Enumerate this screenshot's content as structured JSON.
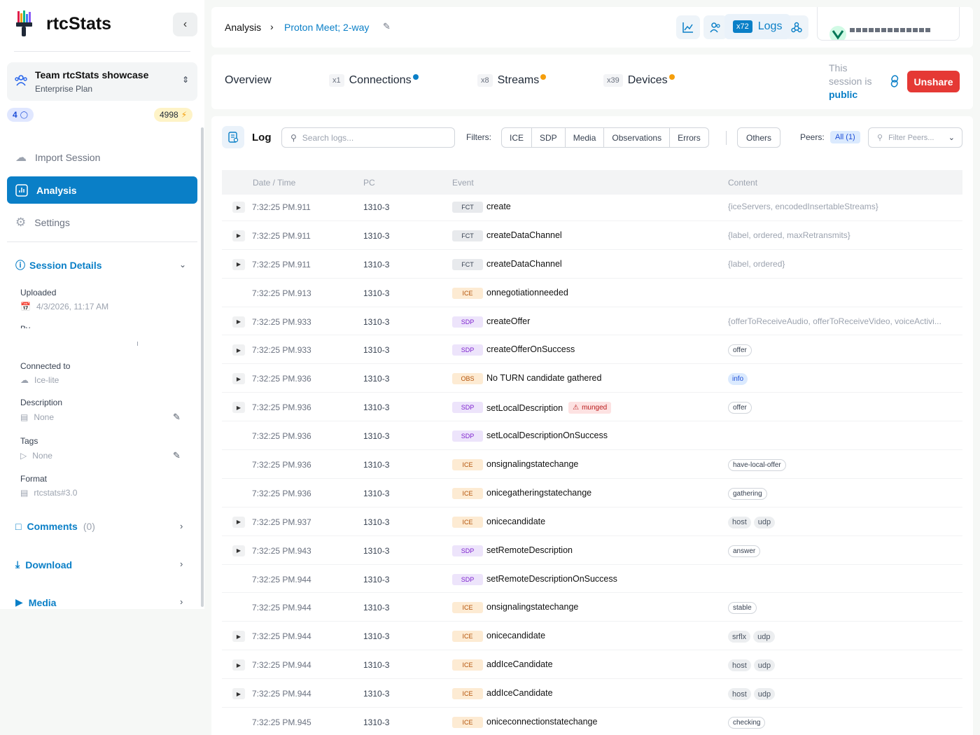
{
  "brand": {
    "name": "rtcStats"
  },
  "team": {
    "name": "Team rtcStats showcase",
    "plan": "Enterprise Plan",
    "users": "4",
    "credits": "4998"
  },
  "nav": {
    "import": "Import Session",
    "analysis": "Analysis",
    "settings": "Settings"
  },
  "session_details": {
    "title": "Session Details",
    "uploaded_label": "Uploaded",
    "uploaded_value": "4/3/2026, 11:17 AM",
    "by_label": "By",
    "connected_label": "Connected to",
    "connected_value": "Ice-lite",
    "description_label": "Description",
    "description_value": "None",
    "tags_label": "Tags",
    "tags_value": "None",
    "format_label": "Format",
    "format_value": "rtcstats#3.0"
  },
  "links": {
    "comments": "Comments",
    "comments_count": "(0)",
    "download": "Download",
    "media": "Media"
  },
  "breadcrumb": {
    "root": "Analysis",
    "current": "Proton Meet; 2-way"
  },
  "tabs": {
    "overview": "Overview",
    "connections": {
      "count": "x1",
      "label": "Connections"
    },
    "streams": {
      "count": "x8",
      "label": "Streams"
    },
    "devices": {
      "count": "x39",
      "label": "Devices"
    },
    "logs": {
      "count": "x72",
      "label": "Logs"
    }
  },
  "share": {
    "prefix": "This",
    "middle": "session is",
    "status": "public",
    "button": "Unshare"
  },
  "log": {
    "title": "Log",
    "search_placeholder": "Search logs...",
    "filters_label": "Filters:",
    "filters": [
      "ICE",
      "SDP",
      "Media",
      "Observations",
      "Errors"
    ],
    "others": "Others",
    "peers_label": "Peers:",
    "peers_all": "All (1)",
    "peers_placeholder": "Filter Peers..."
  },
  "columns": {
    "datetime": "Date / Time",
    "pc": "PC",
    "event": "Event",
    "content": "Content"
  },
  "colors": {
    "accent": "#0a7fc7",
    "danger": "#e53935",
    "dot_connections": "#0a7fc7",
    "dot_warning": "#f59e0b"
  },
  "rows": [
    {
      "exp": true,
      "time": "7:32:25 PM.911",
      "pc": "1310-3",
      "type": "FCT",
      "event": "create",
      "text": "{iceServers, encodedInsertableStreams}"
    },
    {
      "exp": true,
      "time": "7:32:25 PM.911",
      "pc": "1310-3",
      "type": "FCT",
      "event": "createDataChannel",
      "text": "{label, ordered, maxRetransmits}"
    },
    {
      "exp": true,
      "time": "7:32:25 PM.911",
      "pc": "1310-3",
      "type": "FCT",
      "event": "createDataChannel",
      "text": "{label, ordered}"
    },
    {
      "exp": false,
      "time": "7:32:25 PM.913",
      "pc": "1310-3",
      "type": "ICE",
      "event": "onnegotiationneeded"
    },
    {
      "exp": true,
      "time": "7:32:25 PM.933",
      "pc": "1310-3",
      "type": "SDP",
      "event": "createOffer",
      "text": "{offerToReceiveAudio, offerToReceiveVideo, voiceActivi..."
    },
    {
      "exp": true,
      "time": "7:32:25 PM.933",
      "pc": "1310-3",
      "type": "SDP",
      "event": "createOfferOnSuccess",
      "chips": [
        "offer"
      ]
    },
    {
      "exp": true,
      "time": "7:32:25 PM.936",
      "pc": "1310-3",
      "type": "OBS",
      "event": "No TURN candidate gathered",
      "info": "info"
    },
    {
      "exp": true,
      "time": "7:32:25 PM.936",
      "pc": "1310-3",
      "type": "SDP",
      "event": "setLocalDescription",
      "flag": "munged",
      "chips": [
        "offer"
      ]
    },
    {
      "exp": false,
      "time": "7:32:25 PM.936",
      "pc": "1310-3",
      "type": "SDP",
      "event": "setLocalDescriptionOnSuccess"
    },
    {
      "exp": false,
      "time": "7:32:25 PM.936",
      "pc": "1310-3",
      "type": "ICE",
      "event": "onsignalingstatechange",
      "chips": [
        "have-local-offer"
      ]
    },
    {
      "exp": false,
      "time": "7:32:25 PM.936",
      "pc": "1310-3",
      "type": "ICE",
      "event": "onicegatheringstatechange",
      "chips": [
        "gathering"
      ]
    },
    {
      "exp": true,
      "time": "7:32:25 PM.937",
      "pc": "1310-3",
      "type": "ICE",
      "event": "onicecandidate",
      "grey": [
        "host",
        "udp"
      ]
    },
    {
      "exp": true,
      "time": "7:32:25 PM.943",
      "pc": "1310-3",
      "type": "SDP",
      "event": "setRemoteDescription",
      "chips": [
        "answer"
      ]
    },
    {
      "exp": false,
      "time": "7:32:25 PM.944",
      "pc": "1310-3",
      "type": "SDP",
      "event": "setRemoteDescriptionOnSuccess"
    },
    {
      "exp": false,
      "time": "7:32:25 PM.944",
      "pc": "1310-3",
      "type": "ICE",
      "event": "onsignalingstatechange",
      "chips": [
        "stable"
      ]
    },
    {
      "exp": true,
      "time": "7:32:25 PM.944",
      "pc": "1310-3",
      "type": "ICE",
      "event": "onicecandidate",
      "grey": [
        "srflx",
        "udp"
      ]
    },
    {
      "exp": true,
      "time": "7:32:25 PM.944",
      "pc": "1310-3",
      "type": "ICE",
      "event": "addIceCandidate",
      "grey": [
        "host",
        "udp"
      ]
    },
    {
      "exp": true,
      "time": "7:32:25 PM.944",
      "pc": "1310-3",
      "type": "ICE",
      "event": "addIceCandidate",
      "grey": [
        "host",
        "udp"
      ]
    },
    {
      "exp": false,
      "time": "7:32:25 PM.945",
      "pc": "1310-3",
      "type": "ICE",
      "event": "oniceconnectionstatechange",
      "chips": [
        "checking"
      ]
    }
  ]
}
